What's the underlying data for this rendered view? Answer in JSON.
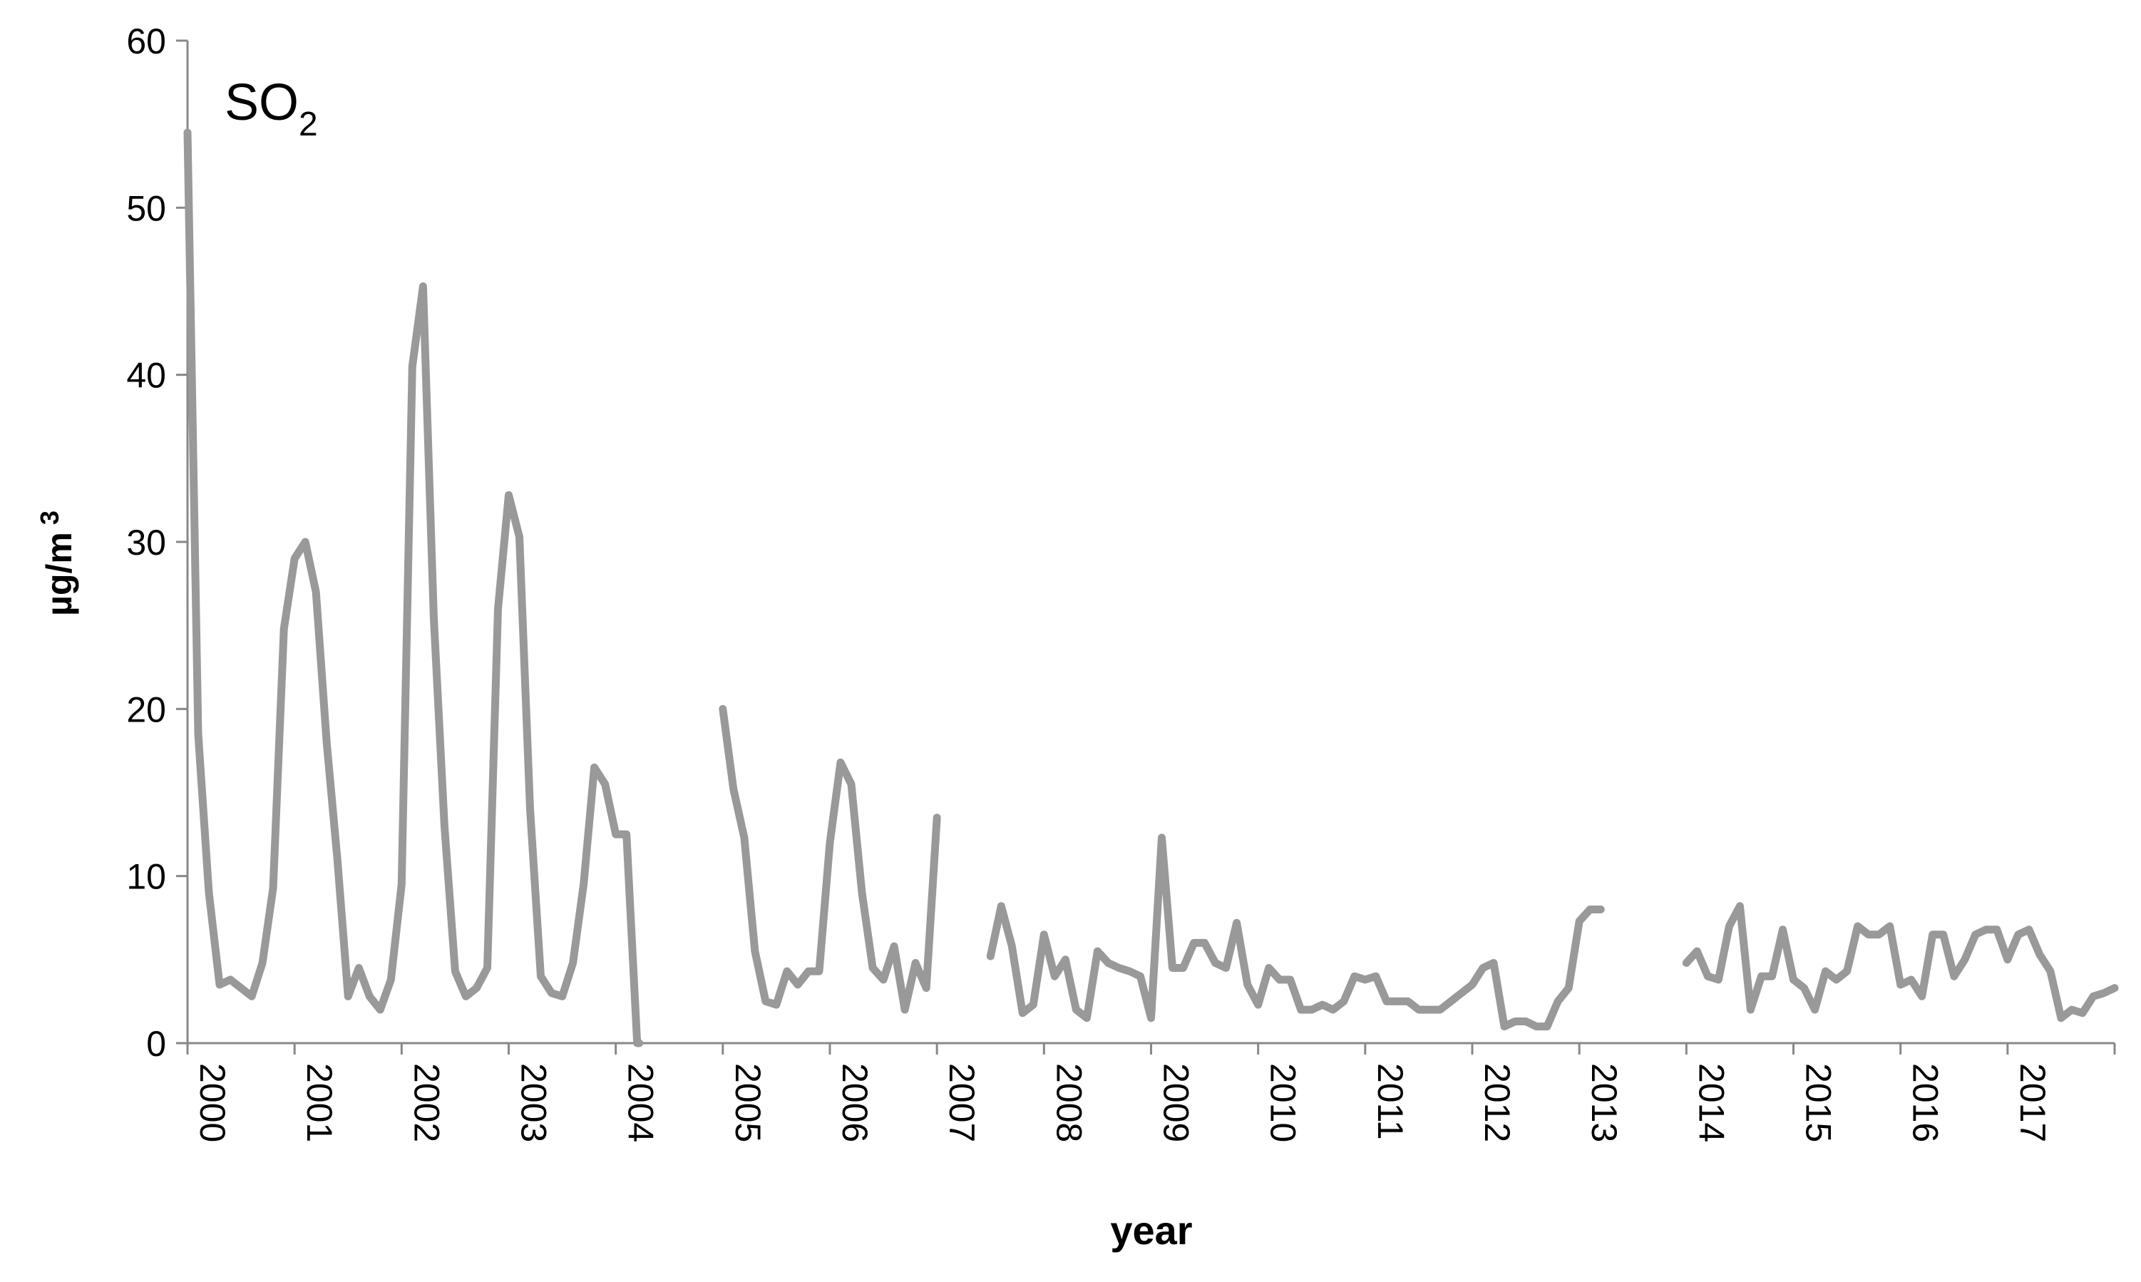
{
  "chart_data": {
    "type": "line",
    "title": "SO",
    "title_subscript": "2",
    "xlabel": "year",
    "ylabel": "µg/m",
    "ylabel_superscript": "3",
    "ylim": [
      0,
      60
    ],
    "xlim": [
      2000,
      2018
    ],
    "yticks": [
      0,
      10,
      20,
      30,
      40,
      50,
      60
    ],
    "xticks": [
      "2000",
      "2001",
      "2002",
      "2003",
      "2004",
      "2005",
      "2006",
      "2007",
      "2008",
      "2009",
      "2010",
      "2011",
      "2012",
      "2013",
      "2014",
      "2015",
      "2016",
      "2017"
    ],
    "grid": false,
    "series_color": "#999999",
    "segments": [
      {
        "x": [
          2000.0,
          2000.1,
          2000.2,
          2000.3,
          2000.4,
          2000.5,
          2000.6,
          2000.7,
          2000.8,
          2000.9,
          2001.0,
          2001.1,
          2001.2,
          2001.3,
          2001.4,
          2001.5,
          2001.6,
          2001.7,
          2001.8,
          2001.9,
          2002.0,
          2002.1,
          2002.2,
          2002.3,
          2002.4,
          2002.5,
          2002.6,
          2002.7,
          2002.8,
          2002.9,
          2003.0,
          2003.1,
          2003.2,
          2003.3,
          2003.4,
          2003.5,
          2003.6,
          2003.7,
          2003.8,
          2003.9,
          2004.0,
          2004.1,
          2004.2,
          2004.22
        ],
        "y": [
          54.5,
          18.5,
          9.0,
          3.5,
          3.8,
          3.3,
          2.8,
          4.8,
          9.3,
          24.8,
          29.0,
          30.0,
          27.0,
          18.0,
          11.0,
          2.8,
          4.5,
          2.8,
          2.0,
          3.8,
          9.5,
          40.5,
          45.3,
          25.5,
          13.0,
          4.3,
          2.8,
          3.3,
          4.5,
          26.0,
          32.8,
          30.3,
          14.0,
          4.0,
          3.0,
          2.8,
          4.8,
          9.5,
          16.5,
          15.5,
          12.5,
          12.5,
          0.0,
          0.0
        ]
      },
      {
        "x": [
          2005.0,
          2005.1,
          2005.2,
          2005.3,
          2005.4,
          2005.5,
          2005.6,
          2005.7,
          2005.8,
          2005.9,
          2006.0,
          2006.1,
          2006.2,
          2006.3,
          2006.4,
          2006.5,
          2006.6,
          2006.7,
          2006.8,
          2006.9,
          2007.0
        ],
        "y": [
          20.0,
          15.2,
          12.3,
          5.5,
          2.5,
          2.3,
          4.3,
          3.5,
          4.3,
          4.3,
          12.0,
          16.8,
          15.5,
          9.0,
          4.5,
          3.8,
          5.8,
          2.0,
          4.8,
          3.3,
          13.5
        ]
      },
      {
        "x": [
          2007.5,
          2007.6,
          2007.7,
          2007.8,
          2007.9,
          2008.0,
          2008.1,
          2008.2,
          2008.3,
          2008.4,
          2008.5,
          2008.6,
          2008.7,
          2008.8,
          2008.9,
          2009.0,
          2009.1,
          2009.2,
          2009.3,
          2009.4,
          2009.5,
          2009.6,
          2009.7,
          2009.8,
          2009.9,
          2010.0,
          2010.1,
          2010.2,
          2010.3,
          2010.4,
          2010.5,
          2010.6,
          2010.7,
          2010.8,
          2010.9,
          2011.0,
          2011.1,
          2011.2,
          2011.3,
          2011.4,
          2011.5,
          2011.6,
          2011.7,
          2011.8,
          2011.9,
          2012.0,
          2012.1,
          2012.2,
          2012.3,
          2012.4,
          2012.5,
          2012.6,
          2012.7,
          2012.8,
          2012.9,
          2013.0,
          2013.1,
          2013.2
        ],
        "y": [
          5.2,
          8.2,
          5.8,
          1.8,
          2.3,
          6.5,
          4.0,
          5.0,
          2.0,
          1.5,
          5.5,
          4.8,
          4.5,
          4.3,
          4.0,
          1.5,
          12.3,
          4.5,
          4.5,
          6.0,
          6.0,
          4.8,
          4.5,
          7.2,
          3.5,
          2.3,
          4.5,
          3.8,
          3.8,
          2.0,
          2.0,
          2.3,
          2.0,
          2.5,
          4.0,
          3.8,
          4.0,
          2.5,
          2.5,
          2.5,
          2.0,
          2.0,
          2.0,
          2.5,
          3.0,
          3.5,
          4.5,
          4.8,
          1.0,
          1.3,
          1.3,
          1.0,
          1.0,
          2.5,
          3.3,
          7.3,
          8.0,
          8.0
        ]
      },
      {
        "x": [
          2014.0,
          2014.1,
          2014.2,
          2014.3,
          2014.4,
          2014.5,
          2014.6,
          2014.7,
          2014.8,
          2014.9,
          2015.0,
          2015.1,
          2015.2,
          2015.3,
          2015.4,
          2015.5,
          2015.6,
          2015.7,
          2015.8,
          2015.9,
          2016.0,
          2016.1,
          2016.2,
          2016.3,
          2016.4,
          2016.5,
          2016.6,
          2016.7,
          2016.8,
          2016.9,
          2017.0,
          2017.1,
          2017.2,
          2017.3,
          2017.4,
          2017.5,
          2017.6,
          2017.7,
          2017.8,
          2017.9,
          2018.0
        ],
        "y": [
          4.8,
          5.5,
          4.0,
          3.8,
          7.0,
          8.2,
          2.0,
          4.0,
          4.0,
          6.8,
          3.8,
          3.3,
          2.0,
          4.3,
          3.8,
          4.3,
          7.0,
          6.5,
          6.5,
          7.0,
          3.5,
          3.8,
          2.8,
          6.5,
          6.5,
          4.0,
          5.0,
          6.5,
          6.8,
          6.8,
          5.0,
          6.5,
          6.8,
          5.3,
          4.3,
          1.5,
          2.0,
          1.8,
          2.8,
          3.0,
          3.3
        ]
      }
    ]
  }
}
